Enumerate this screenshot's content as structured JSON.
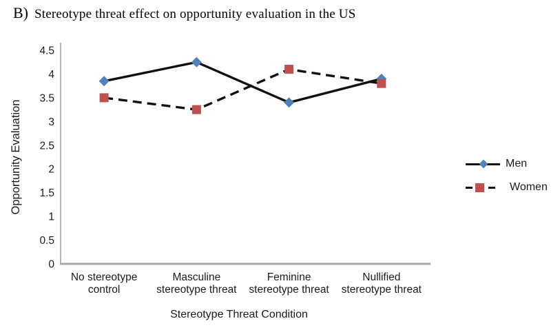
{
  "figure": {
    "title_prefix": "B)",
    "title": "Stereotype threat effect on opportunity evaluation in the US"
  },
  "chart_data": {
    "type": "line",
    "title": "B) Stereotype threat effect on opportunity evaluation in the US",
    "categories": [
      "No stereotype control",
      "Masculine stereotype threat",
      "Feminine stereotype threat",
      "Nullified stereotype threat"
    ],
    "category_label_lines": [
      [
        "No stereotype",
        "control"
      ],
      [
        "Masculine",
        "stereotype threat"
      ],
      [
        "Feminine",
        "stereotype threat"
      ],
      [
        "Nullified",
        "stereotype threat"
      ]
    ],
    "series": [
      {
        "name": "Men",
        "values": [
          3.85,
          4.25,
          3.4,
          3.9
        ],
        "marker": "diamond",
        "marker_color": "#4F81BD",
        "line_color": "#111111",
        "line_style": "solid"
      },
      {
        "name": "Women",
        "values": [
          3.5,
          3.25,
          4.1,
          3.8
        ],
        "marker": "square",
        "marker_color": "#C0504D",
        "line_color": "#111111",
        "line_style": "dashed"
      }
    ],
    "xlabel": "Stereotype Threat Condition",
    "ylabel": "Opportunity Evaluation",
    "ylim": [
      0,
      4.5
    ],
    "yticks": [
      0,
      0.5,
      1,
      1.5,
      2,
      2.5,
      3,
      3.5,
      4,
      4.5
    ],
    "grid": false,
    "legend_position": "right",
    "axis_color": "#a6a6a6",
    "text_color": "#1a1a1a"
  }
}
